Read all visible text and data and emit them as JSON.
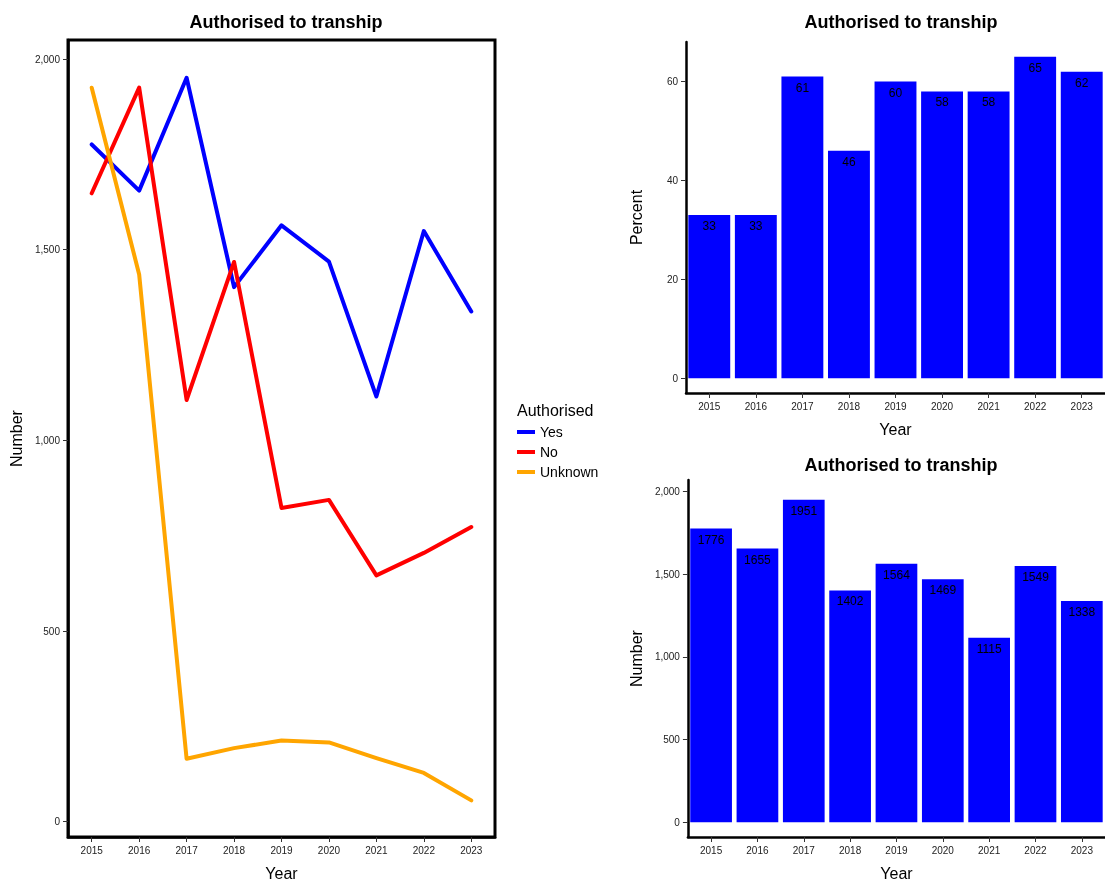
{
  "chart_data": [
    {
      "type": "line",
      "title": "Authorised to tranship",
      "xlabel": "Year",
      "ylabel": "Number",
      "legend_title": "Authorised",
      "legend": "right",
      "categories": [
        "2015",
        "2016",
        "2017",
        "2018",
        "2019",
        "2020",
        "2021",
        "2022",
        "2023"
      ],
      "series": [
        {
          "name": "Yes",
          "color": "#0000ff",
          "values": [
            1776,
            1655,
            1951,
            1402,
            1564,
            1469,
            1115,
            1549,
            1338
          ]
        },
        {
          "name": "No",
          "color": "#ff0000",
          "values": [
            1648,
            1925,
            1106,
            1468,
            823,
            844,
            646,
            705,
            773
          ]
        },
        {
          "name": "Unknown",
          "color": "#ffa500",
          "values": [
            1925,
            1435,
            165,
            193,
            213,
            208,
            167,
            128,
            56
          ]
        }
      ],
      "ylim": [
        -40,
        2050
      ],
      "yticks": [
        {
          "value": 0,
          "label": "0"
        },
        {
          "value": 500,
          "label": "500"
        },
        {
          "value": 1000,
          "label": "1,000"
        },
        {
          "value": 1500,
          "label": "1,500"
        },
        {
          "value": 2000,
          "label": "2,000"
        }
      ]
    },
    {
      "type": "bar",
      "title": "Authorised to tranship",
      "xlabel": "Year",
      "ylabel": "Percent",
      "data_labels": true,
      "categories": [
        "2015",
        "2016",
        "2017",
        "2018",
        "2019",
        "2020",
        "2021",
        "2022",
        "2023"
      ],
      "values": [
        33,
        33,
        61,
        46,
        60,
        58,
        58,
        65,
        62
      ],
      "color": "#0000ff",
      "ylim": [
        -3,
        68
      ],
      "yticks": [
        0,
        20,
        40,
        60
      ]
    },
    {
      "type": "bar",
      "title": "Authorised to tranship",
      "xlabel": "Year",
      "ylabel": "Number",
      "data_labels": true,
      "categories": [
        "2015",
        "2016",
        "2017",
        "2018",
        "2019",
        "2020",
        "2021",
        "2022",
        "2023"
      ],
      "values": [
        1776,
        1655,
        1951,
        1402,
        1564,
        1469,
        1115,
        1549,
        1338
      ],
      "color": "#0000ff",
      "ylim": [
        -90,
        2070
      ],
      "yticks": [
        {
          "value": 0,
          "label": "0"
        },
        {
          "value": 500,
          "label": "500"
        },
        {
          "value": 1000,
          "label": "1,000"
        },
        {
          "value": 1500,
          "label": "1,500"
        },
        {
          "value": 2000,
          "label": "2,000"
        }
      ]
    }
  ]
}
